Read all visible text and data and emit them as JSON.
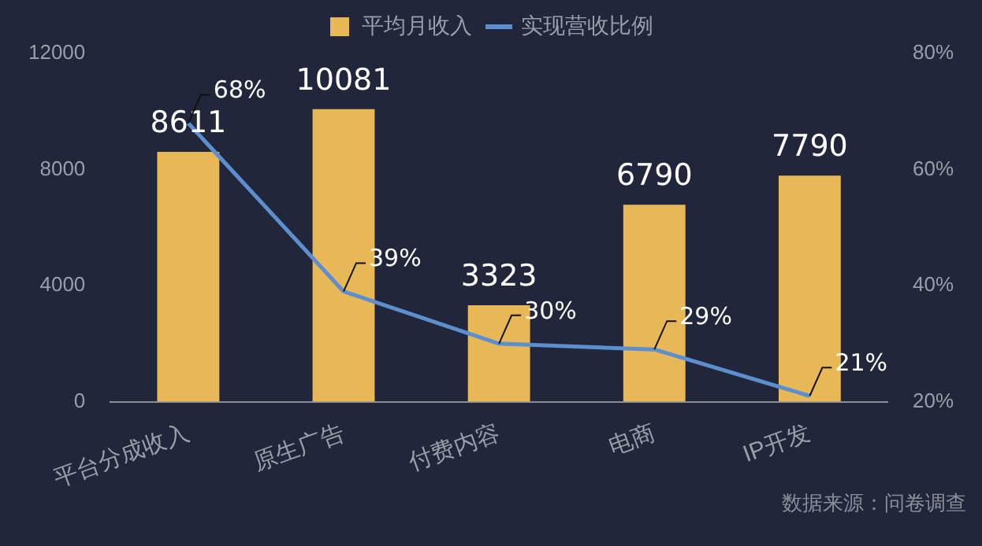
{
  "chart_data": {
    "type": "bar",
    "categories": [
      "平台分成收入",
      "原生广告",
      "付费内容",
      "电商",
      "IP开发"
    ],
    "series": [
      {
        "name": "平均月收入",
        "color": "#e9b856",
        "values": [
          8611,
          10081,
          3323,
          6790,
          7790
        ],
        "value_labels": [
          "8611",
          "10081",
          "3323",
          "6790",
          "7790"
        ]
      },
      {
        "name": "实现营收比例",
        "type": "line",
        "axis": "y2",
        "color": "#5b8fd0",
        "values": [
          68,
          39,
          30,
          29,
          21
        ],
        "value_labels": [
          "68%",
          "39%",
          "30%",
          "29%",
          "21%"
        ]
      }
    ],
    "ylim": [
      0,
      12000
    ],
    "yticks": [
      0,
      4000,
      8000,
      12000
    ],
    "y2lim": [
      20,
      80
    ],
    "y2ticks": [
      {
        "value": 20,
        "label": "20%"
      },
      {
        "value": 40,
        "label": "40%"
      },
      {
        "value": 60,
        "label": "60%"
      },
      {
        "value": 80,
        "label": "80%"
      }
    ],
    "grid": false,
    "legend": "top",
    "marker": "none",
    "line_style": "solid",
    "annotations": [
      "数据来源：问卷调查"
    ]
  }
}
